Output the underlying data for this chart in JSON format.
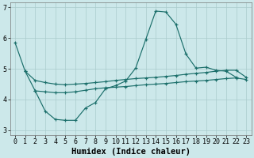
{
  "xlabel": "Humidex (Indice chaleur)",
  "bg_color": "#cce8ea",
  "grid_color": "#aacccc",
  "line_color": "#1a6e6a",
  "xlim_min": -0.5,
  "xlim_max": 23.5,
  "ylim_min": 2.85,
  "ylim_max": 7.15,
  "line1_x": [
    0,
    1,
    2,
    3,
    4,
    5,
    6,
    7,
    8,
    9,
    10,
    11,
    12,
    13,
    14,
    15,
    16,
    17,
    18,
    19,
    20,
    21,
    22
  ],
  "line1_y": [
    5.85,
    4.92,
    4.28,
    3.62,
    3.35,
    3.32,
    3.32,
    3.72,
    3.9,
    4.35,
    4.45,
    4.6,
    5.02,
    5.95,
    6.88,
    6.85,
    6.45,
    5.48,
    5.02,
    5.05,
    4.95,
    4.92,
    4.72
  ],
  "line2_x": [
    1,
    2,
    3,
    4,
    5,
    6,
    7,
    8,
    9,
    10,
    11,
    12,
    13,
    14,
    15,
    16,
    17,
    18,
    19,
    20,
    21,
    22,
    23
  ],
  "line2_y": [
    4.92,
    4.62,
    4.55,
    4.5,
    4.48,
    4.5,
    4.52,
    4.55,
    4.58,
    4.62,
    4.65,
    4.68,
    4.7,
    4.72,
    4.75,
    4.78,
    4.82,
    4.85,
    4.88,
    4.92,
    4.95,
    4.95,
    4.72
  ],
  "line3_x": [
    2,
    3,
    4,
    5,
    6,
    7,
    8,
    9,
    10,
    11,
    12,
    13,
    14,
    15,
    16,
    17,
    18,
    19,
    20,
    21,
    22,
    23
  ],
  "line3_y": [
    4.28,
    4.25,
    4.22,
    4.22,
    4.25,
    4.3,
    4.35,
    4.38,
    4.4,
    4.42,
    4.45,
    4.48,
    4.5,
    4.52,
    4.55,
    4.58,
    4.6,
    4.62,
    4.65,
    4.68,
    4.7,
    4.65
  ],
  "xticks": [
    0,
    1,
    2,
    3,
    4,
    5,
    6,
    7,
    8,
    9,
    10,
    11,
    12,
    13,
    14,
    15,
    16,
    17,
    18,
    19,
    20,
    21,
    22,
    23
  ],
  "yticks": [
    3,
    4,
    5,
    6,
    7
  ],
  "tick_fontsize": 6.0,
  "xlabel_fontsize": 7.5
}
